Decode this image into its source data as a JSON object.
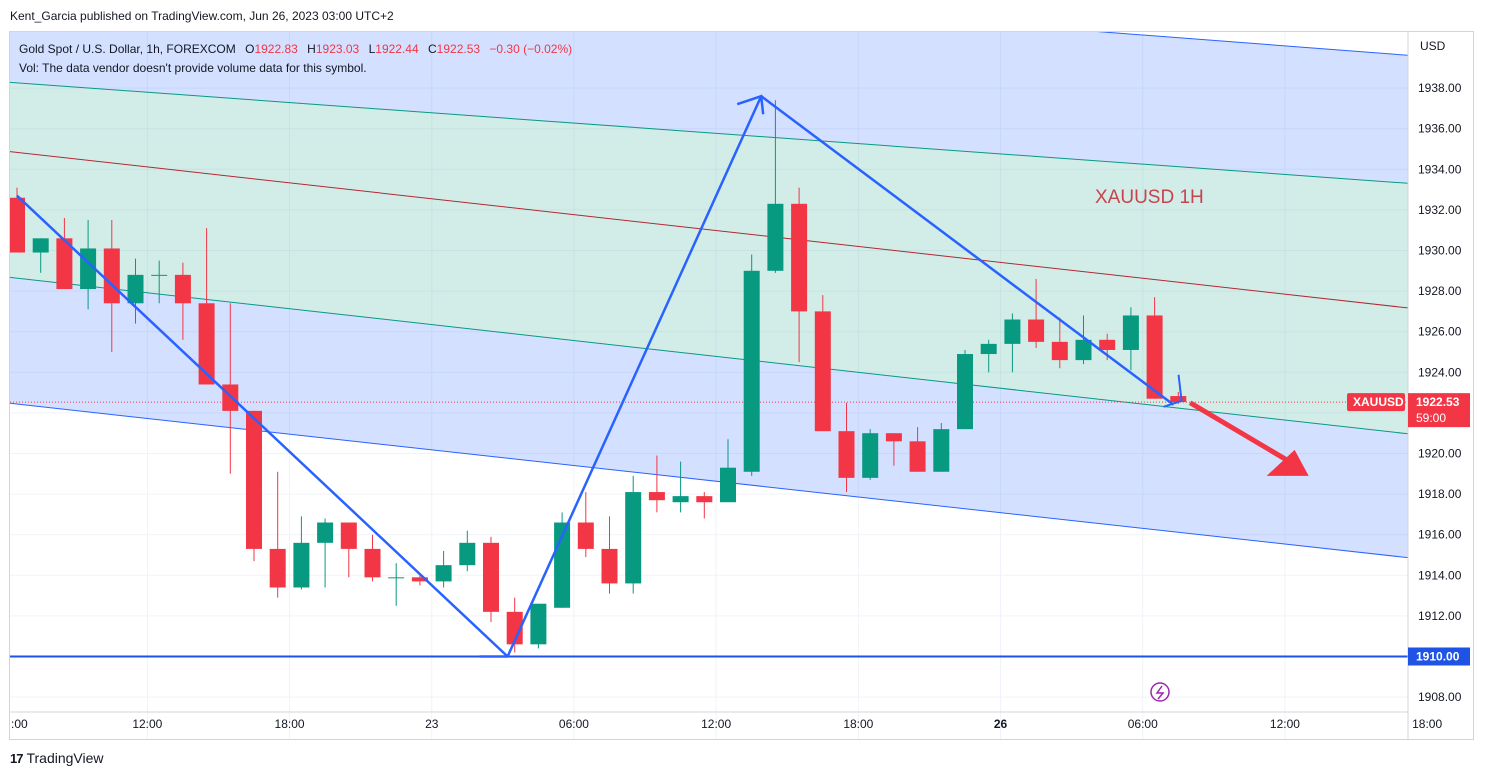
{
  "publisher": "Kent_Garcia published on TradingView.com, Jun 26, 2023 03:00 UTC+2",
  "legend": {
    "symbol": "Gold Spot / U.S. Dollar, 1h, FOREXCOM",
    "o_label": "O",
    "o": "1922.83",
    "h_label": "H",
    "h": "1923.03",
    "l_label": "L",
    "l": "1922.44",
    "c_label": "C",
    "c": "1922.53",
    "change": "−0.30 (−0.02%)",
    "vol": "Vol: The data vendor doesn't provide volume data for this symbol."
  },
  "footer": {
    "brand": "TradingView",
    "logo": "17"
  },
  "chart_data": {
    "type": "candlestick",
    "title": "XAUUSD 1H",
    "currency": "USD",
    "ylim": [
      1907,
      1941
    ],
    "y_ticks": [
      "1908.00",
      "1910.00",
      "1912.00",
      "1914.00",
      "1916.00",
      "1918.00",
      "1920.00",
      "1922.00",
      "1924.00",
      "1926.00",
      "1928.00",
      "1930.00",
      "1932.00",
      "1934.00",
      "1936.00",
      "1938.00"
    ],
    "x_ticks": [
      {
        "bar": -0.5,
        "label": ":00",
        "bold": false
      },
      {
        "bar": 5.5,
        "label": "12:00",
        "bold": false
      },
      {
        "bar": 11.5,
        "label": "18:00",
        "bold": false
      },
      {
        "bar": 17.5,
        "label": "23",
        "bold": false
      },
      {
        "bar": 23.5,
        "label": "06:00",
        "bold": false
      },
      {
        "bar": 29.5,
        "label": "12:00",
        "bold": false
      },
      {
        "bar": 35.5,
        "label": "18:00",
        "bold": false
      },
      {
        "bar": 41.5,
        "label": "26",
        "bold": true
      },
      {
        "bar": 47.5,
        "label": "06:00",
        "bold": false
      },
      {
        "bar": 53.5,
        "label": "12:00",
        "bold": false
      },
      {
        "bar": 59.5,
        "label": "18:00",
        "bold": false
      }
    ],
    "bars": [
      {
        "o": 1932.6,
        "h": 1933.1,
        "l": 1929.9,
        "c": 1929.9
      },
      {
        "o": 1929.9,
        "h": 1930.6,
        "l": 1928.9,
        "c": 1930.6
      },
      {
        "o": 1930.6,
        "h": 1931.6,
        "l": 1928.1,
        "c": 1928.1
      },
      {
        "o": 1928.1,
        "h": 1931.5,
        "l": 1927.1,
        "c": 1930.1
      },
      {
        "o": 1930.1,
        "h": 1931.5,
        "l": 1925.0,
        "c": 1927.4
      },
      {
        "o": 1927.4,
        "h": 1929.6,
        "l": 1926.4,
        "c": 1928.8
      },
      {
        "o": 1928.8,
        "h": 1929.5,
        "l": 1927.4,
        "c": 1928.8
      },
      {
        "o": 1928.8,
        "h": 1929.4,
        "l": 1925.6,
        "c": 1927.4
      },
      {
        "o": 1927.4,
        "h": 1931.1,
        "l": 1923.4,
        "c": 1923.4
      },
      {
        "o": 1923.4,
        "h": 1927.4,
        "l": 1919.0,
        "c": 1922.1
      },
      {
        "o": 1922.1,
        "h": 1922.1,
        "l": 1914.7,
        "c": 1915.3
      },
      {
        "o": 1915.3,
        "h": 1919.1,
        "l": 1912.9,
        "c": 1913.4
      },
      {
        "o": 1913.4,
        "h": 1916.9,
        "l": 1913.3,
        "c": 1915.6
      },
      {
        "o": 1915.6,
        "h": 1916.8,
        "l": 1913.4,
        "c": 1916.6
      },
      {
        "o": 1916.6,
        "h": 1916.6,
        "l": 1913.9,
        "c": 1915.3
      },
      {
        "o": 1915.3,
        "h": 1916.0,
        "l": 1913.7,
        "c": 1913.9
      },
      {
        "o": 1913.9,
        "h": 1914.6,
        "l": 1912.5,
        "c": 1913.9
      },
      {
        "o": 1913.9,
        "h": 1914.1,
        "l": 1913.5,
        "c": 1913.7
      },
      {
        "o": 1913.7,
        "h": 1915.2,
        "l": 1913.4,
        "c": 1914.5
      },
      {
        "o": 1914.5,
        "h": 1916.2,
        "l": 1914.2,
        "c": 1915.6
      },
      {
        "o": 1915.6,
        "h": 1915.9,
        "l": 1911.7,
        "c": 1912.2
      },
      {
        "o": 1912.2,
        "h": 1912.9,
        "l": 1910.2,
        "c": 1910.6
      },
      {
        "o": 1910.6,
        "h": 1912.6,
        "l": 1910.4,
        "c": 1912.6
      },
      {
        "o": 1912.4,
        "h": 1917.1,
        "l": 1912.4,
        "c": 1916.6
      },
      {
        "o": 1916.6,
        "h": 1918.1,
        "l": 1914.9,
        "c": 1915.3
      },
      {
        "o": 1915.3,
        "h": 1916.9,
        "l": 1913.1,
        "c": 1913.6
      },
      {
        "o": 1913.6,
        "h": 1918.9,
        "l": 1913.1,
        "c": 1918.1
      },
      {
        "o": 1918.1,
        "h": 1919.9,
        "l": 1917.1,
        "c": 1917.7
      },
      {
        "o": 1917.6,
        "h": 1919.6,
        "l": 1917.1,
        "c": 1917.9
      },
      {
        "o": 1917.9,
        "h": 1918.1,
        "l": 1916.8,
        "c": 1917.6
      },
      {
        "o": 1917.6,
        "h": 1920.7,
        "l": 1917.6,
        "c": 1919.3
      },
      {
        "o": 1919.1,
        "h": 1929.8,
        "l": 1918.9,
        "c": 1929.0
      },
      {
        "o": 1929.0,
        "h": 1937.4,
        "l": 1928.9,
        "c": 1932.3
      },
      {
        "o": 1932.3,
        "h": 1933.1,
        "l": 1924.5,
        "c": 1927.0
      },
      {
        "o": 1927.0,
        "h": 1927.8,
        "l": 1921.1,
        "c": 1921.1
      },
      {
        "o": 1921.1,
        "h": 1922.5,
        "l": 1918.1,
        "c": 1918.8
      },
      {
        "o": 1918.8,
        "h": 1921.2,
        "l": 1918.7,
        "c": 1921.0
      },
      {
        "o": 1921.0,
        "h": 1921.0,
        "l": 1919.4,
        "c": 1920.6
      },
      {
        "o": 1920.6,
        "h": 1921.3,
        "l": 1919.1,
        "c": 1919.1
      },
      {
        "o": 1919.1,
        "h": 1921.5,
        "l": 1919.1,
        "c": 1921.2
      },
      {
        "o": 1921.2,
        "h": 1925.1,
        "l": 1921.2,
        "c": 1924.9
      },
      {
        "o": 1924.9,
        "h": 1925.6,
        "l": 1924.0,
        "c": 1925.4
      },
      {
        "o": 1925.4,
        "h": 1926.9,
        "l": 1924.0,
        "c": 1926.6
      },
      {
        "o": 1926.6,
        "h": 1928.6,
        "l": 1925.2,
        "c": 1925.5
      },
      {
        "o": 1925.5,
        "h": 1926.7,
        "l": 1924.2,
        "c": 1924.6
      },
      {
        "o": 1924.6,
        "h": 1926.8,
        "l": 1924.4,
        "c": 1925.6
      },
      {
        "o": 1925.6,
        "h": 1925.9,
        "l": 1924.6,
        "c": 1925.1
      },
      {
        "o": 1925.1,
        "h": 1927.2,
        "l": 1924.1,
        "c": 1926.8
      },
      {
        "o": 1926.8,
        "h": 1927.7,
        "l": 1922.7,
        "c": 1922.7
      },
      {
        "o": 1922.83,
        "h": 1923.03,
        "l": 1922.44,
        "c": 1922.53
      }
    ],
    "channel_upper": [
      {
        "bar": -0.5,
        "price": 1944.9
      },
      {
        "bar": 60,
        "price": 1939.5
      }
    ],
    "channel_center": [
      {
        "bar": -0.5,
        "price": 1938.3
      },
      {
        "bar": 60,
        "price": 1933.2
      }
    ],
    "channel_median": [
      {
        "bar": -0.5,
        "price": 1934.9
      },
      {
        "bar": 60,
        "price": 1927.0
      }
    ],
    "channel_mid_low": [
      {
        "bar": -0.5,
        "price": 1928.7
      },
      {
        "bar": 60,
        "price": 1920.8
      }
    ],
    "channel_lower": [
      {
        "bar": -0.5,
        "price": 1922.5
      },
      {
        "bar": 60,
        "price": 1914.7
      }
    ],
    "support_level": 1910.0,
    "zigzag": [
      {
        "bar": 0,
        "price": 1932.7
      },
      {
        "bar": 20.7,
        "price": 1910.0
      },
      {
        "bar": 31.4,
        "price": 1937.6
      },
      {
        "bar": 48.8,
        "price": 1922.4
      }
    ],
    "forecast_arrow": [
      {
        "bar": 49.5,
        "price": 1922.5
      },
      {
        "bar": 54.5,
        "price": 1918.9
      }
    ],
    "last_price": "1922.53",
    "last_price_symbol": "XAUUSD",
    "countdown": "59:00",
    "support_label": "1910.00",
    "colors": {
      "up": "#089981",
      "down": "#f23645",
      "channel_blue": "#2962ff",
      "channel_green": "#089981",
      "median_red": "#b22833",
      "zigzag": "#2962ff",
      "arrow": "#f23645",
      "support": "#1e53e5"
    }
  }
}
